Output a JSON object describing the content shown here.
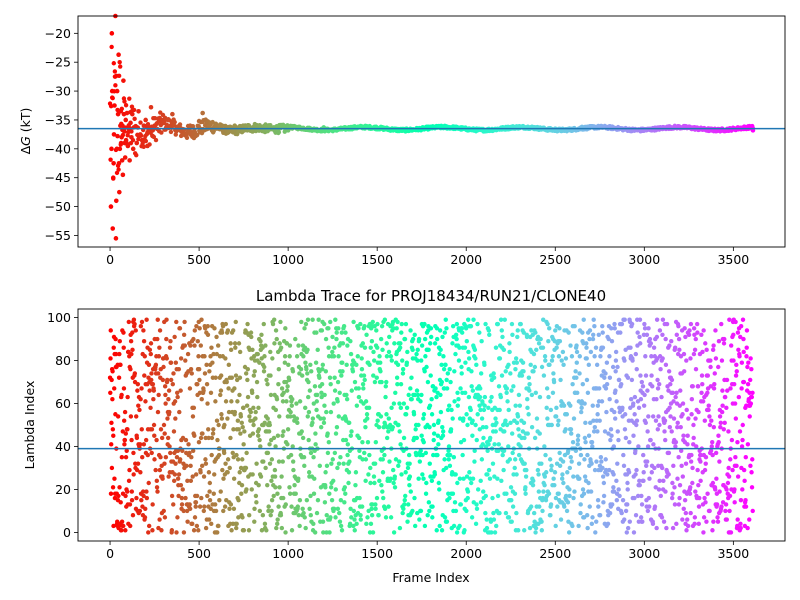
{
  "chart_data": [
    {
      "type": "scatter",
      "title": "",
      "xlabel": "",
      "ylabel": "ΔG (kT)",
      "ylabel_parts": [
        "Δ",
        "G",
        " (kT)"
      ],
      "xlim": [
        -180,
        3790
      ],
      "ylim": [
        -57,
        -17
      ],
      "xticks": [
        0,
        500,
        1000,
        1500,
        2000,
        2500,
        3000,
        3500
      ],
      "yticks": [
        -55,
        -50,
        -45,
        -40,
        -35,
        -30,
        -25,
        -20
      ],
      "ytick_labels": [
        "−55",
        "−50",
        "−45",
        "−40",
        "−35",
        "−30",
        "−25",
        "−20"
      ],
      "hline": -36.5,
      "hline_color": "#1f77b4",
      "colormap": "rainbow",
      "x_range": [
        0,
        3610
      ],
      "description": "Running free energy estimate per frame; early frames scattered between -56 and -17, converging to about -36.5 after ~1000 frames",
      "points": [
        [
          5,
          -50
        ],
        [
          8,
          -40
        ],
        [
          10,
          -20
        ],
        [
          12,
          -30
        ],
        [
          15,
          -53.8
        ],
        [
          18,
          -45
        ],
        [
          20,
          -42.5
        ],
        [
          22,
          -37.5
        ],
        [
          25,
          -32.5
        ],
        [
          28,
          -27.5
        ],
        [
          30,
          -17
        ],
        [
          33,
          -55.5
        ],
        [
          35,
          -49
        ],
        [
          38,
          -40
        ],
        [
          40,
          -30
        ],
        [
          42,
          -37.8
        ],
        [
          45,
          -34
        ],
        [
          48,
          -23.7
        ],
        [
          50,
          -42.5
        ],
        [
          52,
          -47.5
        ],
        [
          55,
          -40
        ],
        [
          58,
          -36
        ],
        [
          60,
          -33.5
        ],
        [
          62,
          -39
        ],
        [
          65,
          -38
        ],
        [
          68,
          -42
        ],
        [
          70,
          -36
        ],
        [
          72,
          -44.5
        ],
        [
          75,
          -28.2
        ],
        [
          78,
          -34
        ],
        [
          80,
          -37
        ],
        [
          82,
          -39
        ],
        [
          85,
          -41.5
        ],
        [
          88,
          -35
        ],
        [
          90,
          -38.5
        ],
        [
          95,
          -33.8
        ],
        [
          100,
          -39.5
        ],
        [
          105,
          -36.5
        ],
        [
          110,
          -42
        ],
        [
          115,
          -35.5
        ],
        [
          120,
          -38
        ],
        [
          125,
          -34
        ],
        [
          130,
          -40
        ],
        [
          140,
          -36.2
        ],
        [
          150,
          -39
        ],
        [
          160,
          -33.5
        ],
        [
          170,
          -37.5
        ],
        [
          180,
          -38.5
        ],
        [
          190,
          -36
        ],
        [
          200,
          -35
        ],
        [
          210,
          -39.5
        ],
        [
          220,
          -36.8
        ],
        [
          230,
          -32.8
        ],
        [
          240,
          -37.8
        ],
        [
          250,
          -36
        ],
        [
          300,
          -35.5
        ],
        [
          350,
          -34
        ],
        [
          400,
          -37
        ],
        [
          450,
          -36
        ],
        [
          500,
          -35.2
        ],
        [
          520,
          -33.8
        ],
        [
          600,
          -36.5
        ],
        [
          700,
          -36
        ],
        [
          800,
          -37
        ],
        [
          900,
          -36.2
        ],
        [
          1000,
          -36.8
        ],
        [
          1200,
          -36.3
        ],
        [
          1500,
          -36.6
        ],
        [
          2000,
          -36.7
        ],
        [
          2500,
          -36.5
        ],
        [
          2650,
          -36.2
        ],
        [
          3000,
          -36.7
        ],
        [
          3610,
          -36.8
        ]
      ]
    },
    {
      "type": "scatter",
      "title": "Lambda Trace for PROJ18434/RUN21/CLONE40",
      "xlabel": "Frame Index",
      "ylabel": "Lambda Index",
      "xlim": [
        -180,
        3790
      ],
      "ylim": [
        -4,
        104
      ],
      "xticks": [
        0,
        500,
        1000,
        1500,
        2000,
        2500,
        3000,
        3500
      ],
      "yticks": [
        0,
        20,
        40,
        60,
        80,
        100
      ],
      "hline": 39,
      "hline_color": "#1f77b4",
      "colormap": "rainbow",
      "x_range": [
        0,
        3610
      ],
      "lambda_range": [
        0,
        99
      ],
      "frame_count": 3610,
      "description": "Lambda index sampled per frame; values spread uniformly across 0-99 for all frames"
    }
  ]
}
